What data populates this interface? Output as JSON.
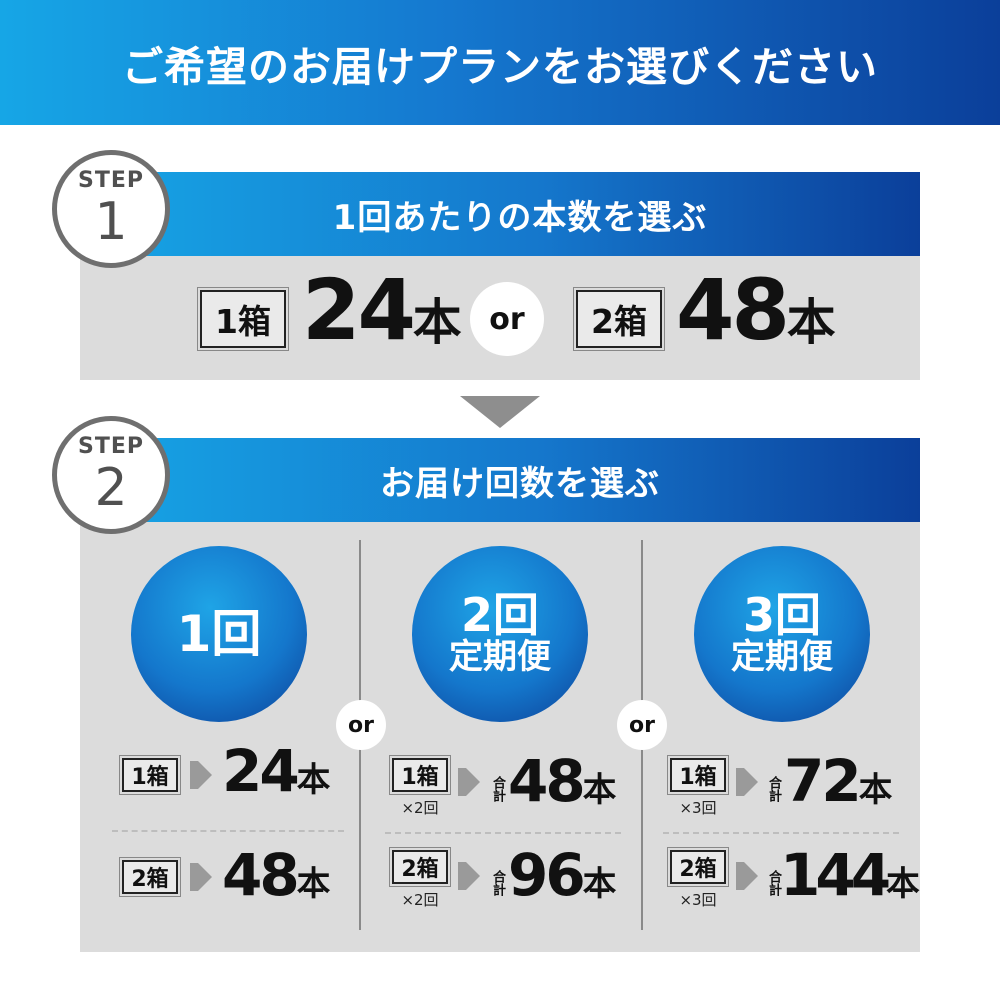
{
  "header": {
    "title": "ご希望のお届けプランをお選びください"
  },
  "step1": {
    "badge_word": "STEP",
    "badge_num": "1",
    "title": "1回あたりの本数を選ぶ",
    "option_a": {
      "box": "1箱",
      "count": "24",
      "unit": "本"
    },
    "or": "or",
    "option_b": {
      "box": "2箱",
      "count": "48",
      "unit": "本"
    }
  },
  "step2": {
    "badge_word": "STEP",
    "badge_num": "2",
    "title": "お届け回数を選ぶ",
    "or": "or",
    "columns": [
      {
        "circle_main": "1回",
        "circle_sub": "",
        "rows": [
          {
            "box": "1箱",
            "times": "",
            "total_label": "",
            "count": "24",
            "unit": "本"
          },
          {
            "box": "2箱",
            "times": "",
            "total_label": "",
            "count": "48",
            "unit": "本"
          }
        ]
      },
      {
        "circle_main": "2回",
        "circle_sub": "定期便",
        "rows": [
          {
            "box": "1箱",
            "times": "×2回",
            "total_label": "合計",
            "count": "48",
            "unit": "本"
          },
          {
            "box": "2箱",
            "times": "×2回",
            "total_label": "合計",
            "count": "96",
            "unit": "本"
          }
        ]
      },
      {
        "circle_main": "3回",
        "circle_sub": "定期便",
        "rows": [
          {
            "box": "1箱",
            "times": "×3回",
            "total_label": "合計",
            "count": "72",
            "unit": "本"
          },
          {
            "box": "2箱",
            "times": "×3回",
            "total_label": "合計",
            "count": "144",
            "unit": "本"
          }
        ]
      }
    ]
  },
  "colors": {
    "accent_light": "#16a6e6",
    "accent_dark": "#0b3f9a",
    "panel_gray": "#dcdcdc",
    "badge_gray": "#6f6f6f"
  }
}
